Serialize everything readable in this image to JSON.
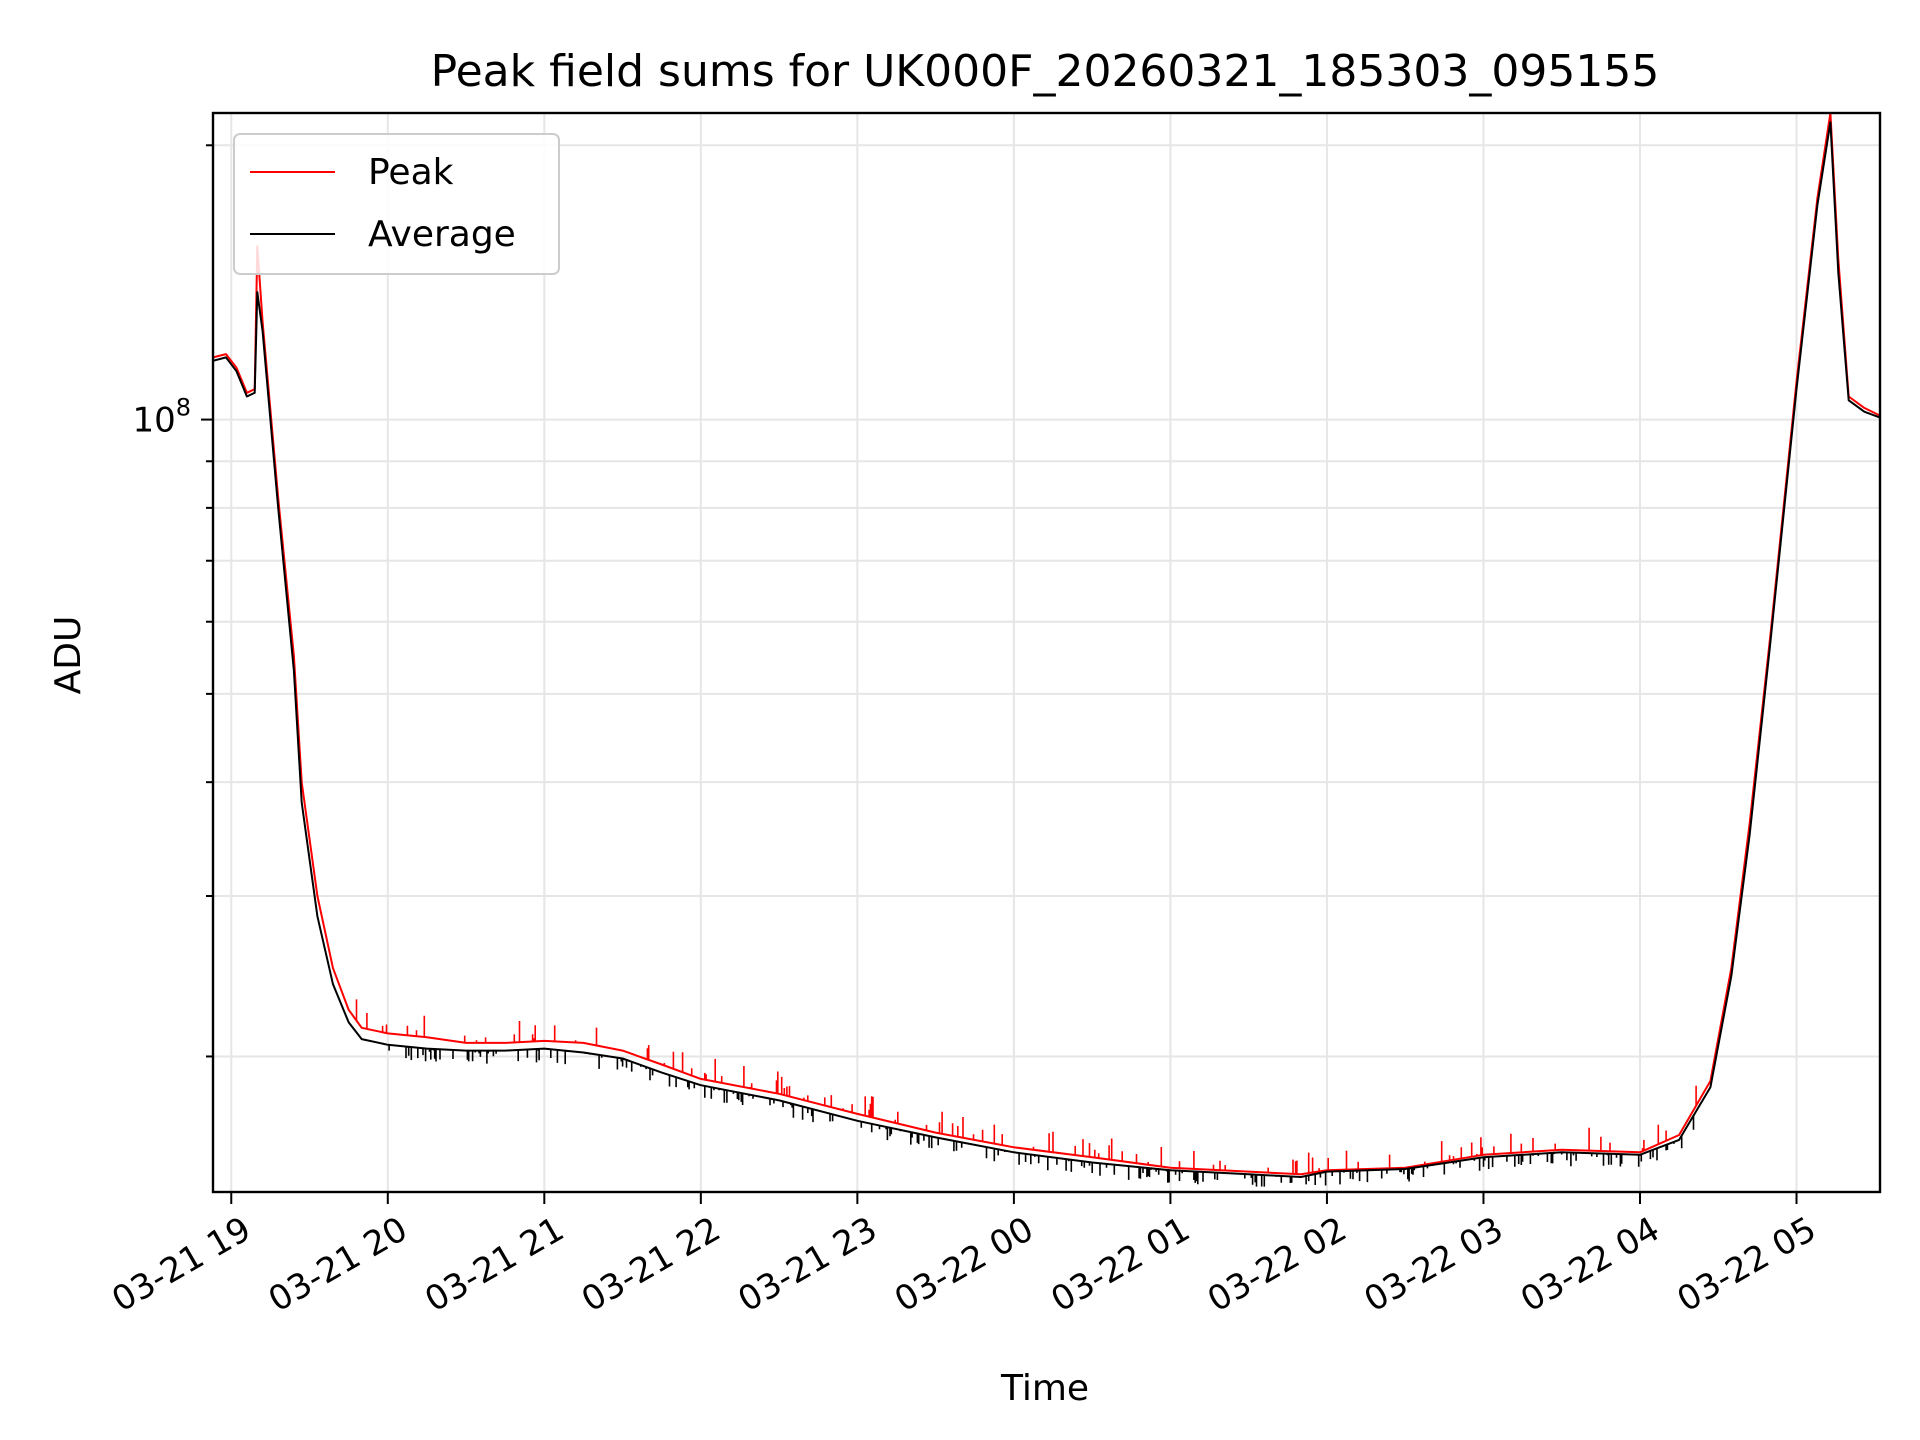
{
  "chart_data": {
    "type": "line",
    "title": "Peak field sums for UK000F_20260321_185303_095155",
    "xlabel": "Time",
    "ylabel": "ADU",
    "y_scale": "log",
    "grid": true,
    "legend_position": "top-left",
    "xlim": [
      "2026-03-21 18:53",
      "2026-03-22 05:32"
    ],
    "ylim": [
      14200000,
      217000000
    ],
    "x_ticks": [
      {
        "value": "2026-03-21 19:00",
        "label": "03-21 19"
      },
      {
        "value": "2026-03-21 20:00",
        "label": "03-21 20"
      },
      {
        "value": "2026-03-21 21:00",
        "label": "03-21 21"
      },
      {
        "value": "2026-03-21 22:00",
        "label": "03-21 22"
      },
      {
        "value": "2026-03-21 23:00",
        "label": "03-21 23"
      },
      {
        "value": "2026-03-22 00:00",
        "label": "03-22 00"
      },
      {
        "value": "2026-03-22 01:00",
        "label": "03-22 01"
      },
      {
        "value": "2026-03-22 02:00",
        "label": "03-22 02"
      },
      {
        "value": "2026-03-22 03:00",
        "label": "03-22 03"
      },
      {
        "value": "2026-03-22 04:00",
        "label": "03-22 04"
      },
      {
        "value": "2026-03-22 05:00",
        "label": "03-22 05"
      }
    ],
    "y_ticks": [
      {
        "value": 100000000,
        "base": "10",
        "exp": "8"
      }
    ],
    "series": [
      {
        "name": "Peak",
        "color": "#ff0000",
        "points": [
          [
            "2026-03-21 18:53",
            117000000
          ],
          [
            "2026-03-21 18:58",
            118000000
          ],
          [
            "2026-03-21 19:02",
            114000000
          ],
          [
            "2026-03-21 19:06",
            107000000
          ],
          [
            "2026-03-21 19:09",
            108000000
          ],
          [
            "2026-03-21 19:10",
            155000000
          ],
          [
            "2026-03-21 19:12",
            128000000
          ],
          [
            "2026-03-21 19:18",
            82000000
          ],
          [
            "2026-03-21 19:24",
            55000000
          ],
          [
            "2026-03-21 19:27",
            40000000
          ],
          [
            "2026-03-21 19:33",
            30000000
          ],
          [
            "2026-03-21 19:39",
            25000000
          ],
          [
            "2026-03-21 19:45",
            22500000
          ],
          [
            "2026-03-21 19:50",
            21500000
          ],
          [
            "2026-03-21 20:00",
            21200000
          ],
          [
            "2026-03-21 20:15",
            21000000
          ],
          [
            "2026-03-21 20:30",
            20700000
          ],
          [
            "2026-03-21 20:45",
            20700000
          ],
          [
            "2026-03-21 21:00",
            20800000
          ],
          [
            "2026-03-21 21:15",
            20700000
          ],
          [
            "2026-03-21 21:30",
            20300000
          ],
          [
            "2026-03-21 21:45",
            19600000
          ],
          [
            "2026-03-21 22:00",
            18900000
          ],
          [
            "2026-03-21 22:30",
            18200000
          ],
          [
            "2026-03-21 23:00",
            17300000
          ],
          [
            "2026-03-21 23:30",
            16500000
          ],
          [
            "2026-03-22 00:00",
            15900000
          ],
          [
            "2026-03-22 00:30",
            15500000
          ],
          [
            "2026-03-22 01:00",
            15100000
          ],
          [
            "2026-03-22 01:30",
            14950000
          ],
          [
            "2026-03-22 01:50",
            14850000
          ],
          [
            "2026-03-22 02:00",
            15000000
          ],
          [
            "2026-03-22 02:30",
            15100000
          ],
          [
            "2026-03-22 03:00",
            15600000
          ],
          [
            "2026-03-22 03:30",
            15800000
          ],
          [
            "2026-03-22 04:00",
            15700000
          ],
          [
            "2026-03-22 04:15",
            16400000
          ],
          [
            "2026-03-22 04:27",
            18800000
          ],
          [
            "2026-03-22 04:35",
            25000000
          ],
          [
            "2026-03-22 04:42",
            36000000
          ],
          [
            "2026-03-22 04:50",
            58000000
          ],
          [
            "2026-03-22 05:00",
            110000000
          ],
          [
            "2026-03-22 05:08",
            175000000
          ],
          [
            "2026-03-22 05:13",
            217000000
          ],
          [
            "2026-03-22 05:16",
            150000000
          ],
          [
            "2026-03-22 05:20",
            106000000
          ],
          [
            "2026-03-22 05:26",
            103000000
          ],
          [
            "2026-03-22 05:32",
            101000000
          ]
        ]
      },
      {
        "name": "Average",
        "color": "#000000",
        "points": [
          [
            "2026-03-21 18:53",
            116000000
          ],
          [
            "2026-03-21 18:58",
            117000000
          ],
          [
            "2026-03-21 19:02",
            113000000
          ],
          [
            "2026-03-21 19:06",
            106000000
          ],
          [
            "2026-03-21 19:09",
            107000000
          ],
          [
            "2026-03-21 19:10",
            138000000
          ],
          [
            "2026-03-21 19:12",
            125000000
          ],
          [
            "2026-03-21 19:18",
            80000000
          ],
          [
            "2026-03-21 19:24",
            53000000
          ],
          [
            "2026-03-21 19:27",
            38000000
          ],
          [
            "2026-03-21 19:33",
            28500000
          ],
          [
            "2026-03-21 19:39",
            24000000
          ],
          [
            "2026-03-21 19:45",
            21800000
          ],
          [
            "2026-03-21 19:50",
            20900000
          ],
          [
            "2026-03-21 20:00",
            20600000
          ],
          [
            "2026-03-21 20:15",
            20400000
          ],
          [
            "2026-03-21 20:30",
            20300000
          ],
          [
            "2026-03-21 20:45",
            20300000
          ],
          [
            "2026-03-21 21:00",
            20400000
          ],
          [
            "2026-03-21 21:15",
            20200000
          ],
          [
            "2026-03-21 21:30",
            19900000
          ],
          [
            "2026-03-21 21:45",
            19200000
          ],
          [
            "2026-03-21 22:00",
            18600000
          ],
          [
            "2026-03-21 22:30",
            17900000
          ],
          [
            "2026-03-21 23:00",
            17000000
          ],
          [
            "2026-03-21 23:30",
            16300000
          ],
          [
            "2026-03-22 00:00",
            15700000
          ],
          [
            "2026-03-22 00:30",
            15300000
          ],
          [
            "2026-03-22 01:00",
            15000000
          ],
          [
            "2026-03-22 01:30",
            14850000
          ],
          [
            "2026-03-22 01:50",
            14750000
          ],
          [
            "2026-03-22 02:00",
            14950000
          ],
          [
            "2026-03-22 02:30",
            15050000
          ],
          [
            "2026-03-22 03:00",
            15500000
          ],
          [
            "2026-03-22 03:30",
            15700000
          ],
          [
            "2026-03-22 04:00",
            15600000
          ],
          [
            "2026-03-22 04:15",
            16200000
          ],
          [
            "2026-03-22 04:27",
            18500000
          ],
          [
            "2026-03-22 04:35",
            24500000
          ],
          [
            "2026-03-22 04:42",
            35000000
          ],
          [
            "2026-03-22 04:50",
            57000000
          ],
          [
            "2026-03-22 05:00",
            108000000
          ],
          [
            "2026-03-22 05:08",
            172000000
          ],
          [
            "2026-03-22 05:13",
            212000000
          ],
          [
            "2026-03-22 05:16",
            145000000
          ],
          [
            "2026-03-22 05:20",
            105000000
          ],
          [
            "2026-03-22 05:26",
            102000000
          ],
          [
            "2026-03-22 05:32",
            100500000
          ]
        ]
      }
    ]
  }
}
